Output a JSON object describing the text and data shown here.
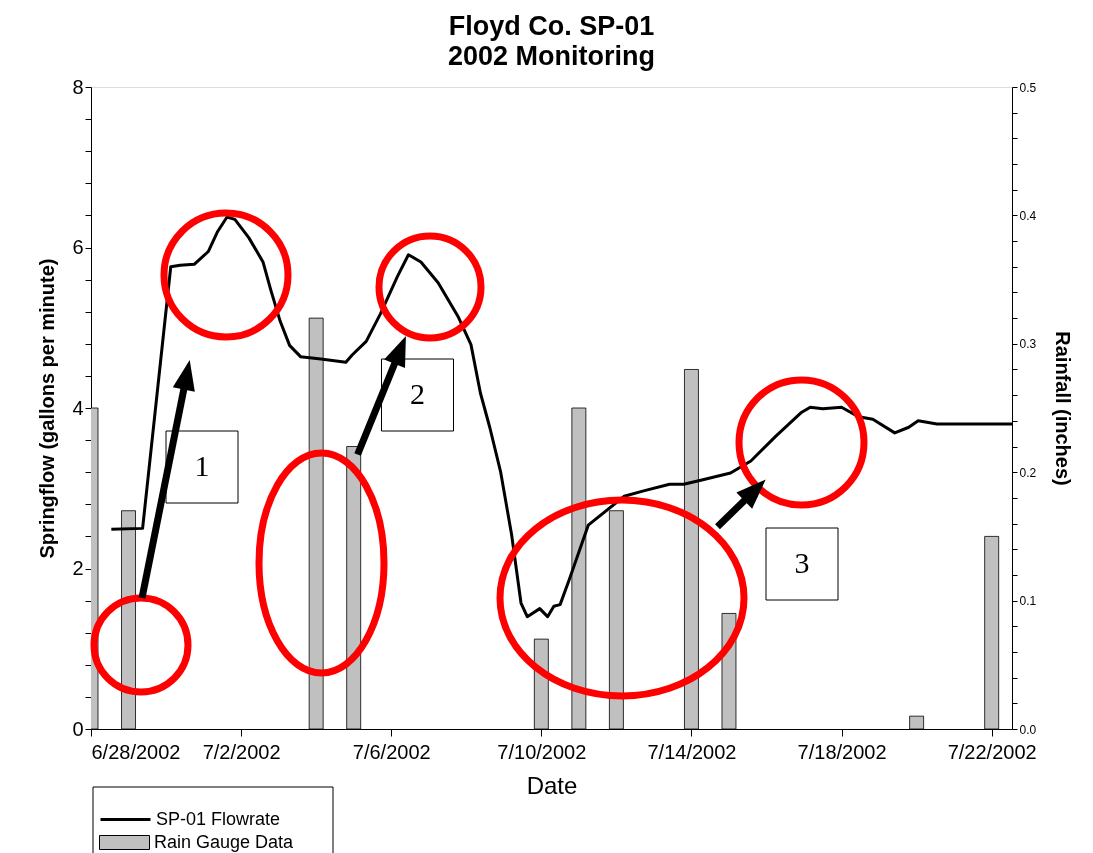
{
  "chart_data": {
    "type": "line",
    "title": "Floyd Co. SP-01\n2002 Monitoring",
    "xlabel": "Date",
    "ylabel": "Springflow (gallons per minute)",
    "y2label": "Rainfall (inches)",
    "xlim": [
      "2002-06-28T00:00",
      "2002-07-22T13:00"
    ],
    "xticks": [
      {
        "value": "2002-06-28",
        "label": "6/28/2002"
      },
      {
        "value": "2002-07-02",
        "label": "7/2/2002"
      },
      {
        "value": "2002-07-06",
        "label": "7/6/2002"
      },
      {
        "value": "2002-07-10",
        "label": "7/10/2002"
      },
      {
        "value": "2002-07-14",
        "label": "7/14/2002"
      },
      {
        "value": "2002-07-18",
        "label": "7/18/2002"
      },
      {
        "value": "2002-07-22",
        "label": "7/22/2002"
      }
    ],
    "ylim": [
      0,
      8
    ],
    "yticks": [
      0,
      {
        "value": 0.4,
        "label": null
      },
      {
        "value": 0.8,
        "label": null
      },
      {
        "value": 1.2,
        "label": null
      },
      {
        "value": 1.6,
        "label": null
      },
      2,
      {
        "value": 2.4,
        "label": null
      },
      {
        "value": 2.8,
        "label": null
      },
      {
        "value": 3.2,
        "label": null
      },
      {
        "value": 3.6,
        "label": null
      },
      4,
      {
        "value": 4.4,
        "label": null
      },
      {
        "value": 4.8,
        "label": null
      },
      {
        "value": 5.2,
        "label": null
      },
      {
        "value": 5.6,
        "label": null
      },
      6,
      {
        "value": 6.4,
        "label": null
      },
      {
        "value": 6.8,
        "label": null
      },
      {
        "value": 7.2,
        "label": null
      },
      {
        "value": 7.6,
        "label": null
      },
      8
    ],
    "y2lim": [
      0,
      0.5
    ],
    "y2ticks": [
      {
        "value": 0,
        "label": "0.0"
      },
      {
        "value": 0.02,
        "label": null
      },
      {
        "value": 0.04,
        "label": null
      },
      {
        "value": 0.06,
        "label": null
      },
      {
        "value": 0.08,
        "label": null
      },
      0.1,
      {
        "value": 0.12,
        "label": null
      },
      {
        "value": 0.14,
        "label": null
      },
      {
        "value": 0.16,
        "label": null
      },
      {
        "value": 0.18,
        "label": null
      },
      0.2,
      {
        "value": 0.22,
        "label": null
      },
      {
        "value": 0.24,
        "label": null
      },
      {
        "value": 0.26,
        "label": null
      },
      {
        "value": 0.28,
        "label": null
      },
      0.3,
      {
        "value": 0.32,
        "label": null
      },
      {
        "value": 0.34,
        "label": null
      },
      {
        "value": 0.36,
        "label": null
      },
      {
        "value": 0.38,
        "label": null
      },
      0.4,
      {
        "value": 0.42,
        "label": null
      },
      {
        "value": 0.44,
        "label": null
      },
      {
        "value": 0.46,
        "label": null
      },
      {
        "value": 0.48,
        "label": null
      },
      0.5
    ],
    "legend": "bottom left",
    "line_style": "solid",
    "series": [
      {
        "name": "SP-01 Flowrate",
        "color": "#000000",
        "x": [
          "2002-06-28T13:00",
          "2002-06-29T09:00",
          "2002-06-30T03:00",
          "2002-06-30T09:00",
          "2002-06-30T18:00",
          "2002-07-01T03:00",
          "2002-07-01T09:00",
          "2002-07-01T15:00",
          "2002-07-01T20:00",
          "2002-07-02T05:00",
          "2002-07-02T14:00",
          "2002-07-02T19:00",
          "2002-07-03T01:00",
          "2002-07-03T07:00",
          "2002-07-03T14:00",
          "2002-07-04T03:00",
          "2002-07-04T19:00",
          "2002-07-04T23:00",
          "2002-07-05T08:00",
          "2002-07-05T17:00",
          "2002-07-06T04:00",
          "2002-07-06T11:00",
          "2002-07-06T19:00",
          "2002-07-07T06:00",
          "2002-07-07T19:00",
          "2002-07-08T03:00",
          "2002-07-08T09:00",
          "2002-07-08T15:00",
          "2002-07-08T22:00",
          "2002-07-09T05:00",
          "2002-07-09T11:00",
          "2002-07-09T15:00",
          "2002-07-09T23:00",
          "2002-07-10T04:00",
          "2002-07-10T08:00",
          "2002-07-10T12:00",
          "2002-07-10T18:00",
          "2002-07-11T06:00",
          "2002-07-12T05:00",
          "2002-07-12T18:00",
          "2002-07-13T10:00",
          "2002-07-13T19:00",
          "2002-07-14T06:00",
          "2002-07-15T01:00",
          "2002-07-15T14:00",
          "2002-07-16T06:00",
          "2002-07-16T22:00",
          "2002-07-17T04:00",
          "2002-07-17T12:00",
          "2002-07-18T00:00",
          "2002-07-18T11:00",
          "2002-07-18T20:00",
          "2002-07-19T10:00",
          "2002-07-19T19:00",
          "2002-07-20T01:00",
          "2002-07-20T13:00",
          "2002-07-22T13:00"
        ],
        "values": [
          2.49,
          2.5,
          5.76,
          5.78,
          5.79,
          5.95,
          6.2,
          6.38,
          6.35,
          6.12,
          5.82,
          5.47,
          5.08,
          4.78,
          4.64,
          4.61,
          4.57,
          4.66,
          4.83,
          5.17,
          5.64,
          5.91,
          5.82,
          5.56,
          5.13,
          4.79,
          4.19,
          3.76,
          3.2,
          2.42,
          1.57,
          1.4,
          1.5,
          1.4,
          1.53,
          1.55,
          1.87,
          2.54,
          2.9,
          2.97,
          3.05,
          3.05,
          3.1,
          3.19,
          3.34,
          3.65,
          3.94,
          4.01,
          3.99,
          4.01,
          3.89,
          3.86,
          3.69,
          3.76,
          3.84,
          3.8,
          3.8
        ]
      },
      {
        "name": "Rain Gauge Data",
        "type": "bar",
        "axis": "y2",
        "color": "#c0c0c0",
        "x": [
          "2002-06-28",
          "2002-06-29",
          "2002-07-04",
          "2002-07-05",
          "2002-07-10",
          "2002-07-11",
          "2002-07-12",
          "2002-07-14",
          "2002-07-15",
          "2002-07-20",
          "2002-07-22"
        ],
        "values": [
          0.25,
          0.17,
          0.32,
          0.22,
          0.07,
          0.25,
          0.17,
          0.28,
          0.09,
          0.01,
          0.15
        ]
      }
    ],
    "annotations": [
      "1",
      "2",
      "3"
    ]
  }
}
